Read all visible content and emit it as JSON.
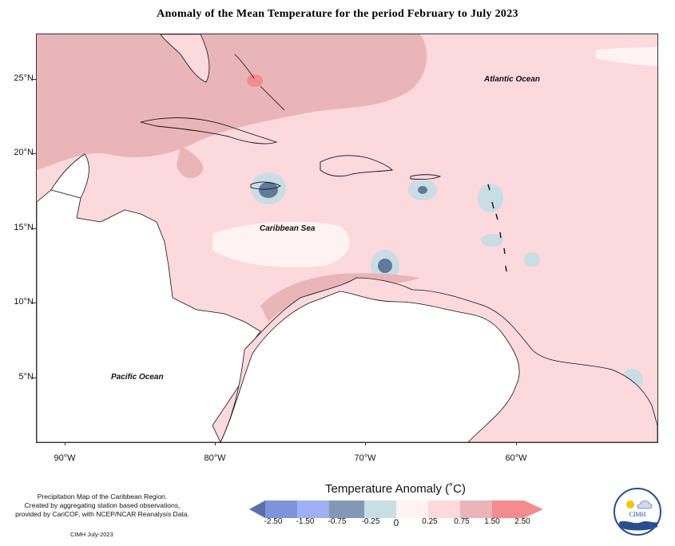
{
  "title": "Anomaly of the Mean Temperature for the period February to July 2023",
  "oceans": {
    "atlantic": "Atlantic Ocean",
    "caribbean": "Caribbean Sea",
    "pacific": "Pacific Ocean"
  },
  "y_axis": [
    "25°N",
    "20°N",
    "15°N",
    "10°N",
    "5°N"
  ],
  "x_axis": [
    "90°W",
    "80°W",
    "70°W",
    "60°W"
  ],
  "notes": {
    "line1": "Precipitation Map of the Caribbean Region.",
    "line2": "Created by aggregating station based observations,",
    "line3": "provided by CariCOF, with NCEP/NCAR Reanalysis Data.",
    "credit": "CIMH July-2023"
  },
  "legend": {
    "title": "Temperature Anomaly (˚C)",
    "labels": [
      "-2.50",
      "-1.50",
      "-0.75",
      "-0.25",
      "0",
      "0.25",
      "0.75",
      "1.50",
      "2.50"
    ],
    "colors": [
      "#5a6fa8",
      "#7f93d9",
      "#9fb0f5",
      "#8398b4",
      "#c8dde4",
      "#fff2f2",
      "#fcd9dd",
      "#eab5b9",
      "#f48b8e"
    ]
  },
  "logo": {
    "text": "CIMH"
  },
  "colors": {
    "ocean_base": "#fcd9dd",
    "warm_band": "#eab5b9",
    "hot_spot": "#f48b8e",
    "cool_spot": "#c8dde4",
    "cold_core": "#5f7a9a",
    "land": "#ffffff"
  }
}
